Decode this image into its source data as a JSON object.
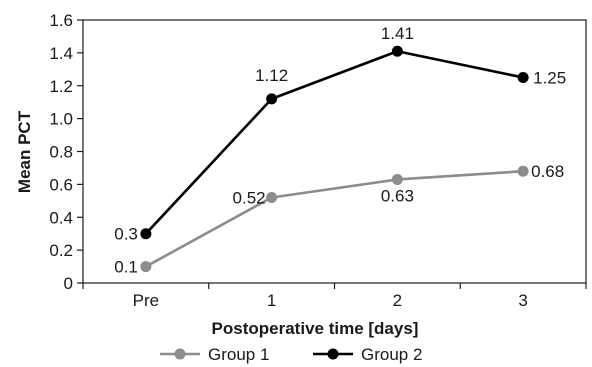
{
  "chart_data": {
    "type": "line",
    "categories": [
      "Pre",
      "1",
      "2",
      "3"
    ],
    "series": [
      {
        "name": "Group 1",
        "values": [
          0.1,
          0.52,
          0.63,
          0.68
        ],
        "color": "#8c8c8c",
        "labels": [
          "0.1",
          "0.52",
          "0.63",
          "0.68"
        ]
      },
      {
        "name": "Group 2",
        "values": [
          0.3,
          1.12,
          1.41,
          1.25
        ],
        "color": "#000000",
        "labels": [
          "0.3",
          "1.12",
          "1.41",
          "1.25"
        ]
      }
    ],
    "xlabel": "Postoperative time [days]",
    "ylabel": "Mean PCT",
    "ylim": [
      0,
      1.6
    ],
    "yticks": [
      "0",
      "0.2",
      "0.4",
      "0.6",
      "0.8",
      "1.0",
      "1.2",
      "1.4",
      "1.6"
    ],
    "grid": false,
    "legend": "bottom"
  }
}
